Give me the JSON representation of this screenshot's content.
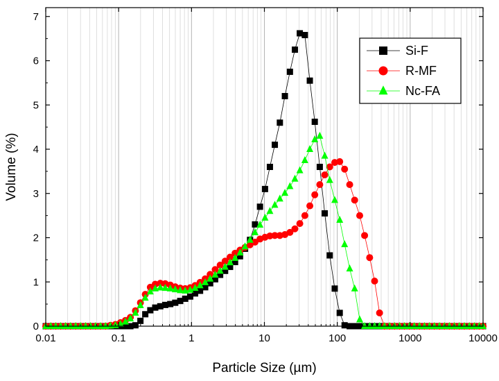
{
  "chart_data": {
    "type": "scatter",
    "title": "",
    "xlabel": "Particle Size (µm)",
    "ylabel": "Volume (%)",
    "x_scale": "log",
    "xlim": [
      0.01,
      10000
    ],
    "ylim": [
      0,
      7.2
    ],
    "x_ticks": [
      "0.01",
      "0.1",
      "1",
      "10",
      "100",
      "1000",
      "10000"
    ],
    "y_ticks": [
      "0",
      "1",
      "2",
      "3",
      "4",
      "5",
      "6",
      "7"
    ],
    "grid": "vertical minor and major lines on x",
    "legend_position": "top-right",
    "series": [
      {
        "name": "Si-F",
        "color": "#000000",
        "marker": "square",
        "x": [
          0.01,
          0.0117,
          0.0137,
          0.016,
          0.0187,
          0.0219,
          0.0257,
          0.03,
          0.0352,
          0.0411,
          0.0482,
          0.0564,
          0.066,
          0.0772,
          0.0904,
          0.106,
          0.124,
          0.145,
          0.17,
          0.199,
          0.232,
          0.272,
          0.318,
          0.373,
          0.436,
          0.511,
          0.598,
          0.7,
          0.819,
          0.959,
          1.12,
          1.31,
          1.54,
          1.8,
          2.11,
          2.47,
          2.89,
          3.38,
          3.96,
          4.63,
          5.42,
          6.35,
          7.43,
          8.7,
          10.2,
          11.9,
          13.9,
          16.3,
          19.1,
          22.4,
          26.2,
          30.6,
          35.9,
          42,
          49.1,
          57.5,
          67.3,
          78.8,
          92.2,
          108,
          126,
          148,
          173,
          203,
          237,
          278,
          325,
          380,
          445,
          521,
          610,
          714,
          836,
          978,
          1140,
          1340,
          1570,
          1840,
          2150,
          2520,
          2950,
          3450,
          4040,
          4730,
          5540,
          6480,
          7590,
          8880,
          10000
        ],
        "y": [
          0,
          0,
          0,
          0,
          0,
          0,
          0,
          0,
          0,
          0,
          0,
          0,
          0,
          0,
          0,
          0,
          0,
          0,
          0.02,
          0.12,
          0.27,
          0.36,
          0.42,
          0.45,
          0.48,
          0.5,
          0.53,
          0.57,
          0.62,
          0.67,
          0.74,
          0.8,
          0.88,
          0.97,
          1.06,
          1.16,
          1.25,
          1.34,
          1.45,
          1.58,
          1.75,
          1.95,
          2.3,
          2.7,
          3.1,
          3.6,
          4.1,
          4.6,
          5.2,
          5.75,
          6.25,
          6.62,
          6.58,
          5.55,
          4.62,
          3.6,
          2.55,
          1.6,
          0.85,
          0.3,
          0.02,
          0,
          0,
          0,
          0,
          0,
          0,
          0,
          0,
          0,
          0,
          0,
          0,
          0,
          0,
          0,
          0,
          0,
          0,
          0,
          0,
          0,
          0,
          0,
          0,
          0,
          0,
          0,
          0
        ]
      },
      {
        "name": "R-MF",
        "color": "#ff0000",
        "marker": "circle",
        "x": [
          0.01,
          0.0117,
          0.0137,
          0.016,
          0.0187,
          0.0219,
          0.0257,
          0.03,
          0.0352,
          0.0411,
          0.0482,
          0.0564,
          0.066,
          0.0772,
          0.0904,
          0.106,
          0.124,
          0.145,
          0.17,
          0.199,
          0.232,
          0.272,
          0.318,
          0.373,
          0.436,
          0.511,
          0.598,
          0.7,
          0.819,
          0.959,
          1.12,
          1.31,
          1.54,
          1.8,
          2.11,
          2.47,
          2.89,
          3.38,
          3.96,
          4.63,
          5.42,
          6.35,
          7.43,
          8.7,
          10.2,
          11.9,
          13.9,
          16.3,
          19.1,
          22.4,
          26.2,
          30.6,
          35.9,
          42,
          49.1,
          57.5,
          67.3,
          78.8,
          92.2,
          108,
          126,
          148,
          173,
          203,
          237,
          278,
          325,
          380,
          445,
          521,
          610,
          714,
          836,
          978,
          1140,
          1340,
          1570,
          1840,
          2150,
          2520,
          2950,
          3450,
          4040,
          4730,
          5540,
          6480,
          7590,
          8880,
          10000
        ],
        "y": [
          0,
          0,
          0,
          0,
          0,
          0,
          0,
          0,
          0,
          0,
          0,
          0,
          0,
          0.02,
          0.04,
          0.08,
          0.13,
          0.2,
          0.35,
          0.53,
          0.72,
          0.88,
          0.95,
          0.97,
          0.96,
          0.93,
          0.89,
          0.86,
          0.85,
          0.87,
          0.92,
          0.99,
          1.07,
          1.17,
          1.28,
          1.38,
          1.47,
          1.56,
          1.65,
          1.72,
          1.78,
          1.84,
          1.9,
          1.97,
          2.01,
          2.04,
          2.05,
          2.05,
          2.07,
          2.12,
          2.2,
          2.32,
          2.5,
          2.72,
          2.97,
          3.2,
          3.42,
          3.6,
          3.7,
          3.72,
          3.55,
          3.2,
          2.85,
          2.5,
          2.05,
          1.55,
          1.02,
          0.3,
          0,
          0,
          0,
          0,
          0,
          0,
          0,
          0,
          0,
          0,
          0,
          0,
          0,
          0,
          0,
          0,
          0,
          0,
          0,
          0,
          0
        ]
      },
      {
        "name": "Nc-FA",
        "color": "#00ff00",
        "marker": "triangle",
        "x": [
          0.01,
          0.0117,
          0.0137,
          0.016,
          0.0187,
          0.0219,
          0.0257,
          0.03,
          0.0352,
          0.0411,
          0.0482,
          0.0564,
          0.066,
          0.0772,
          0.0904,
          0.106,
          0.124,
          0.145,
          0.17,
          0.199,
          0.232,
          0.272,
          0.318,
          0.373,
          0.436,
          0.511,
          0.598,
          0.7,
          0.819,
          0.959,
          1.12,
          1.31,
          1.54,
          1.8,
          2.11,
          2.47,
          2.89,
          3.38,
          3.96,
          4.63,
          5.42,
          6.35,
          7.43,
          8.7,
          10.2,
          11.9,
          13.9,
          16.3,
          19.1,
          22.4,
          26.2,
          30.6,
          35.9,
          42,
          49.1,
          57.5,
          67.3,
          78.8,
          92.2,
          108,
          126,
          148,
          173,
          203,
          237,
          278,
          325,
          380,
          445,
          521,
          610,
          714,
          836,
          978,
          1140,
          1340,
          1570,
          1840,
          2150,
          2520,
          2950,
          3450,
          4040,
          4730,
          5540,
          6480,
          7590,
          8880,
          10000
        ],
        "y": [
          0,
          0,
          0,
          0,
          0,
          0,
          0,
          0,
          0,
          0,
          0,
          0,
          0,
          0.01,
          0.02,
          0.05,
          0.1,
          0.17,
          0.3,
          0.47,
          0.64,
          0.78,
          0.85,
          0.87,
          0.86,
          0.85,
          0.83,
          0.81,
          0.8,
          0.82,
          0.86,
          0.92,
          0.99,
          1.07,
          1.16,
          1.25,
          1.34,
          1.44,
          1.54,
          1.66,
          1.8,
          1.95,
          2.12,
          2.29,
          2.45,
          2.6,
          2.74,
          2.88,
          3.01,
          3.16,
          3.33,
          3.52,
          3.75,
          4.0,
          4.22,
          4.3,
          3.85,
          3.3,
          2.85,
          2.4,
          1.85,
          1.3,
          0.85,
          0.15,
          0,
          0,
          0,
          0,
          0,
          0,
          0,
          0,
          0,
          0,
          0,
          0,
          0,
          0,
          0,
          0,
          0,
          0,
          0,
          0,
          0,
          0,
          0,
          0,
          0
        ]
      }
    ]
  }
}
